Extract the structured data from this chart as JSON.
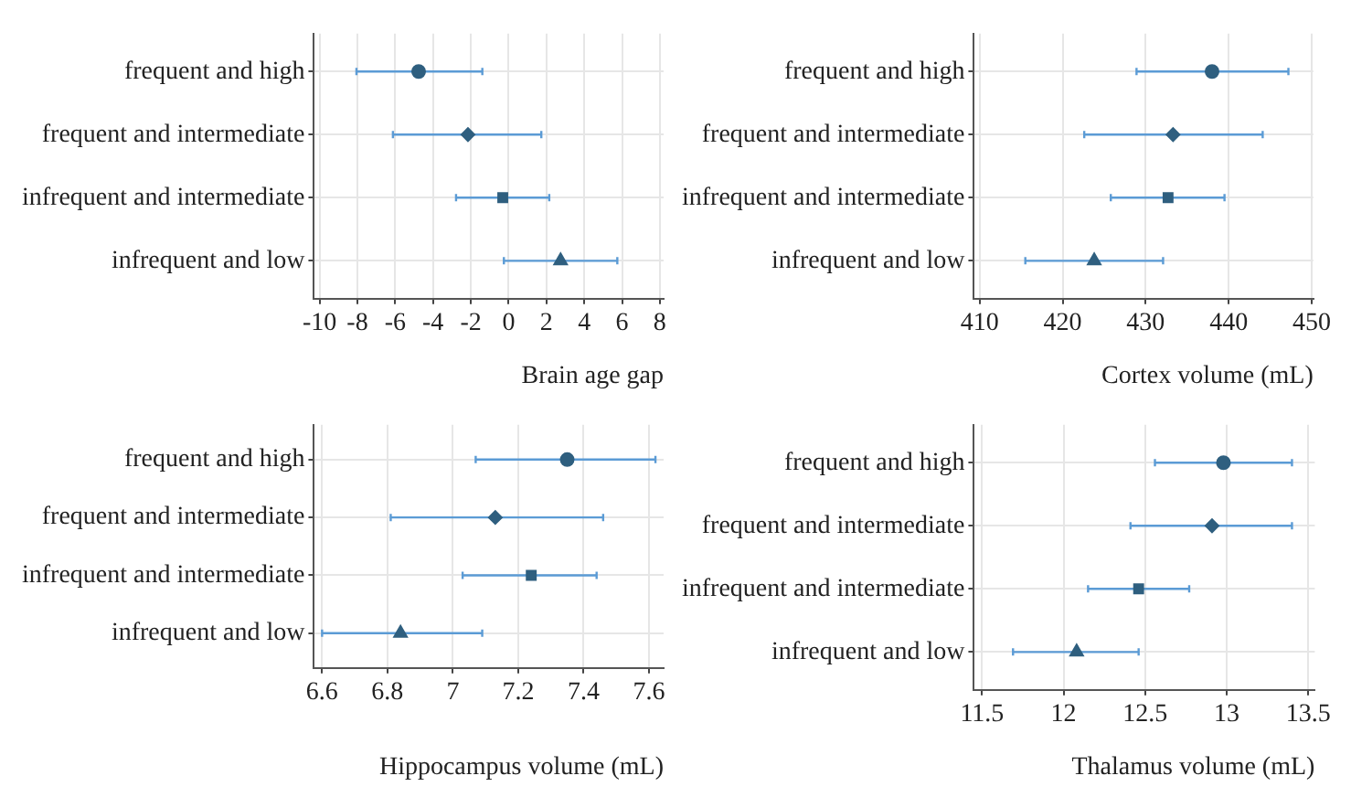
{
  "chart_data": [
    {
      "type": "scatter",
      "orientation": "horizontal",
      "xlabel": "Brain age gap",
      "categories": [
        "frequent and high",
        "frequent and intermediate",
        "infrequent and intermediate",
        "infrequent and low"
      ],
      "xlim": [
        -10.3,
        8.2
      ],
      "xticks": [
        -10,
        -8,
        -6,
        -4,
        -2,
        0,
        2,
        4,
        6,
        8
      ],
      "grid": true,
      "series": [
        {
          "color": "#2f5f7f",
          "marker": "circle",
          "values": [
            -4.76,
            null,
            null,
            null
          ],
          "errors": [
            [
              -8.05,
              -1.39
            ],
            null,
            null,
            null
          ]
        },
        {
          "color": "#2f5f7f",
          "marker": "diamond",
          "values": [
            null,
            -2.15,
            null,
            null
          ],
          "errors": [
            null,
            [
              -6.12,
              1.73
            ],
            null,
            null
          ]
        },
        {
          "color": "#2f5f7f",
          "marker": "square",
          "values": [
            null,
            null,
            -0.31,
            null
          ],
          "errors": [
            null,
            null,
            [
              -2.78,
              2.15
            ],
            null
          ]
        },
        {
          "color": "#2f5f7f",
          "marker": "triangle",
          "values": [
            null,
            null,
            null,
            2.75
          ],
          "errors": [
            null,
            null,
            null,
            [
              -0.25,
              5.75
            ]
          ]
        }
      ]
    },
    {
      "type": "scatter",
      "orientation": "horizontal",
      "xlabel": "Cortex volume (mL)",
      "categories": [
        "frequent and high",
        "frequent and intermediate",
        "infrequent and intermediate",
        "infrequent and low"
      ],
      "xlim": [
        409.3,
        450.2
      ],
      "xticks": [
        410,
        420,
        430,
        440,
        450
      ],
      "grid": true,
      "series": [
        {
          "color": "#2f5f7f",
          "marker": "circle",
          "values": [
            438.0,
            null,
            null,
            null
          ],
          "errors": [
            [
              428.9,
              447.2
            ],
            null,
            null,
            null
          ]
        },
        {
          "color": "#2f5f7f",
          "marker": "diamond",
          "values": [
            null,
            433.3,
            null,
            null
          ],
          "errors": [
            null,
            [
              422.6,
              444.1
            ],
            null,
            null
          ]
        },
        {
          "color": "#2f5f7f",
          "marker": "square",
          "values": [
            null,
            null,
            432.7,
            null
          ],
          "errors": [
            null,
            null,
            [
              425.8,
              439.5
            ],
            null
          ]
        },
        {
          "color": "#2f5f7f",
          "marker": "triangle",
          "values": [
            null,
            null,
            null,
            423.8
          ],
          "errors": [
            null,
            null,
            null,
            [
              415.5,
              432.1
            ]
          ]
        }
      ]
    },
    {
      "type": "scatter",
      "orientation": "horizontal",
      "xlabel": "Hippocampus volume (mL)",
      "categories": [
        "frequent and high",
        "frequent and intermediate",
        "infrequent and intermediate",
        "infrequent and low"
      ],
      "xlim": [
        6.575,
        7.645
      ],
      "xticks": [
        6.6,
        6.8,
        7,
        7.2,
        7.4,
        7.6
      ],
      "grid": true,
      "series": [
        {
          "color": "#2f5f7f",
          "marker": "circle",
          "values": [
            7.35,
            null,
            null,
            null
          ],
          "errors": [
            [
              7.07,
              7.62
            ],
            null,
            null,
            null
          ]
        },
        {
          "color": "#2f5f7f",
          "marker": "diamond",
          "values": [
            null,
            7.13,
            null,
            null
          ],
          "errors": [
            null,
            [
              6.81,
              7.46
            ],
            null,
            null
          ]
        },
        {
          "color": "#2f5f7f",
          "marker": "square",
          "values": [
            null,
            null,
            7.24,
            null
          ],
          "errors": [
            null,
            null,
            [
              7.03,
              7.44
            ],
            null
          ]
        },
        {
          "color": "#2f5f7f",
          "marker": "triangle",
          "values": [
            null,
            null,
            null,
            6.84
          ],
          "errors": [
            null,
            null,
            null,
            [
              6.6,
              7.09
            ]
          ]
        }
      ]
    },
    {
      "type": "scatter",
      "orientation": "horizontal",
      "xlabel": "Thalamus volume (mL)",
      "categories": [
        "frequent and high",
        "frequent and intermediate",
        "infrequent and intermediate",
        "infrequent and low"
      ],
      "xlim": [
        11.45,
        13.54
      ],
      "xticks": [
        11.5,
        12,
        12.5,
        13,
        13.5
      ],
      "grid": true,
      "series": [
        {
          "color": "#2f5f7f",
          "marker": "circle",
          "values": [
            12.98,
            null,
            null,
            null
          ],
          "errors": [
            [
              12.56,
              13.4
            ],
            null,
            null,
            null
          ]
        },
        {
          "color": "#2f5f7f",
          "marker": "diamond",
          "values": [
            null,
            12.91,
            null,
            null
          ],
          "errors": [
            null,
            [
              12.41,
              13.4
            ],
            null,
            null
          ]
        },
        {
          "color": "#2f5f7f",
          "marker": "square",
          "values": [
            null,
            null,
            12.46,
            null
          ],
          "errors": [
            null,
            null,
            [
              12.15,
              12.77
            ],
            null
          ]
        },
        {
          "color": "#2f5f7f",
          "marker": "triangle",
          "values": [
            null,
            null,
            null,
            12.08
          ],
          "errors": [
            null,
            null,
            null,
            [
              11.69,
              12.46
            ]
          ]
        }
      ]
    }
  ]
}
